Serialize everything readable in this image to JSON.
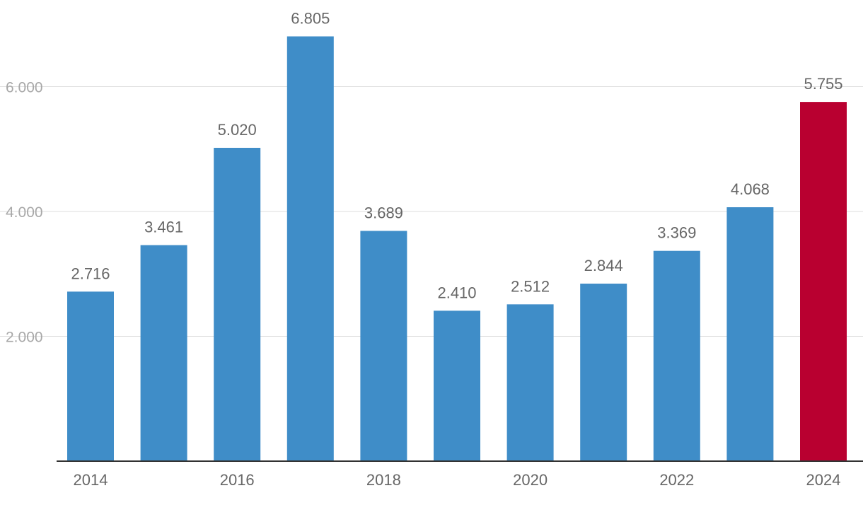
{
  "chart_data": {
    "type": "bar",
    "title": "",
    "xlabel": "",
    "ylabel": "",
    "categories": [
      "2014",
      "2015",
      "2016",
      "2017",
      "2018",
      "2019",
      "2020",
      "2021",
      "2022",
      "2023",
      "2024"
    ],
    "values": [
      2716,
      3461,
      5020,
      6805,
      3689,
      2410,
      2512,
      2844,
      3369,
      4068,
      5755
    ],
    "value_labels": [
      "2.716",
      "3.461",
      "5.020",
      "6.805",
      "3.689",
      "2.410",
      "2.512",
      "2.844",
      "3.369",
      "4.068",
      "5.755"
    ],
    "x_tick_labels": [
      "2014",
      "",
      "2016",
      "",
      "2018",
      "",
      "2020",
      "",
      "2022",
      "",
      "2024"
    ],
    "y_ticks": [
      {
        "value": 2000,
        "label": "2.000"
      },
      {
        "value": 4000,
        "label": "4.000"
      },
      {
        "value": 6000,
        "label": "6.000"
      }
    ],
    "ylim": [
      0,
      7400
    ],
    "grid": true,
    "legend": "none",
    "colors": {
      "bar": "#3f8dc8",
      "highlight": "#b90030"
    },
    "highlight_index": 10
  }
}
